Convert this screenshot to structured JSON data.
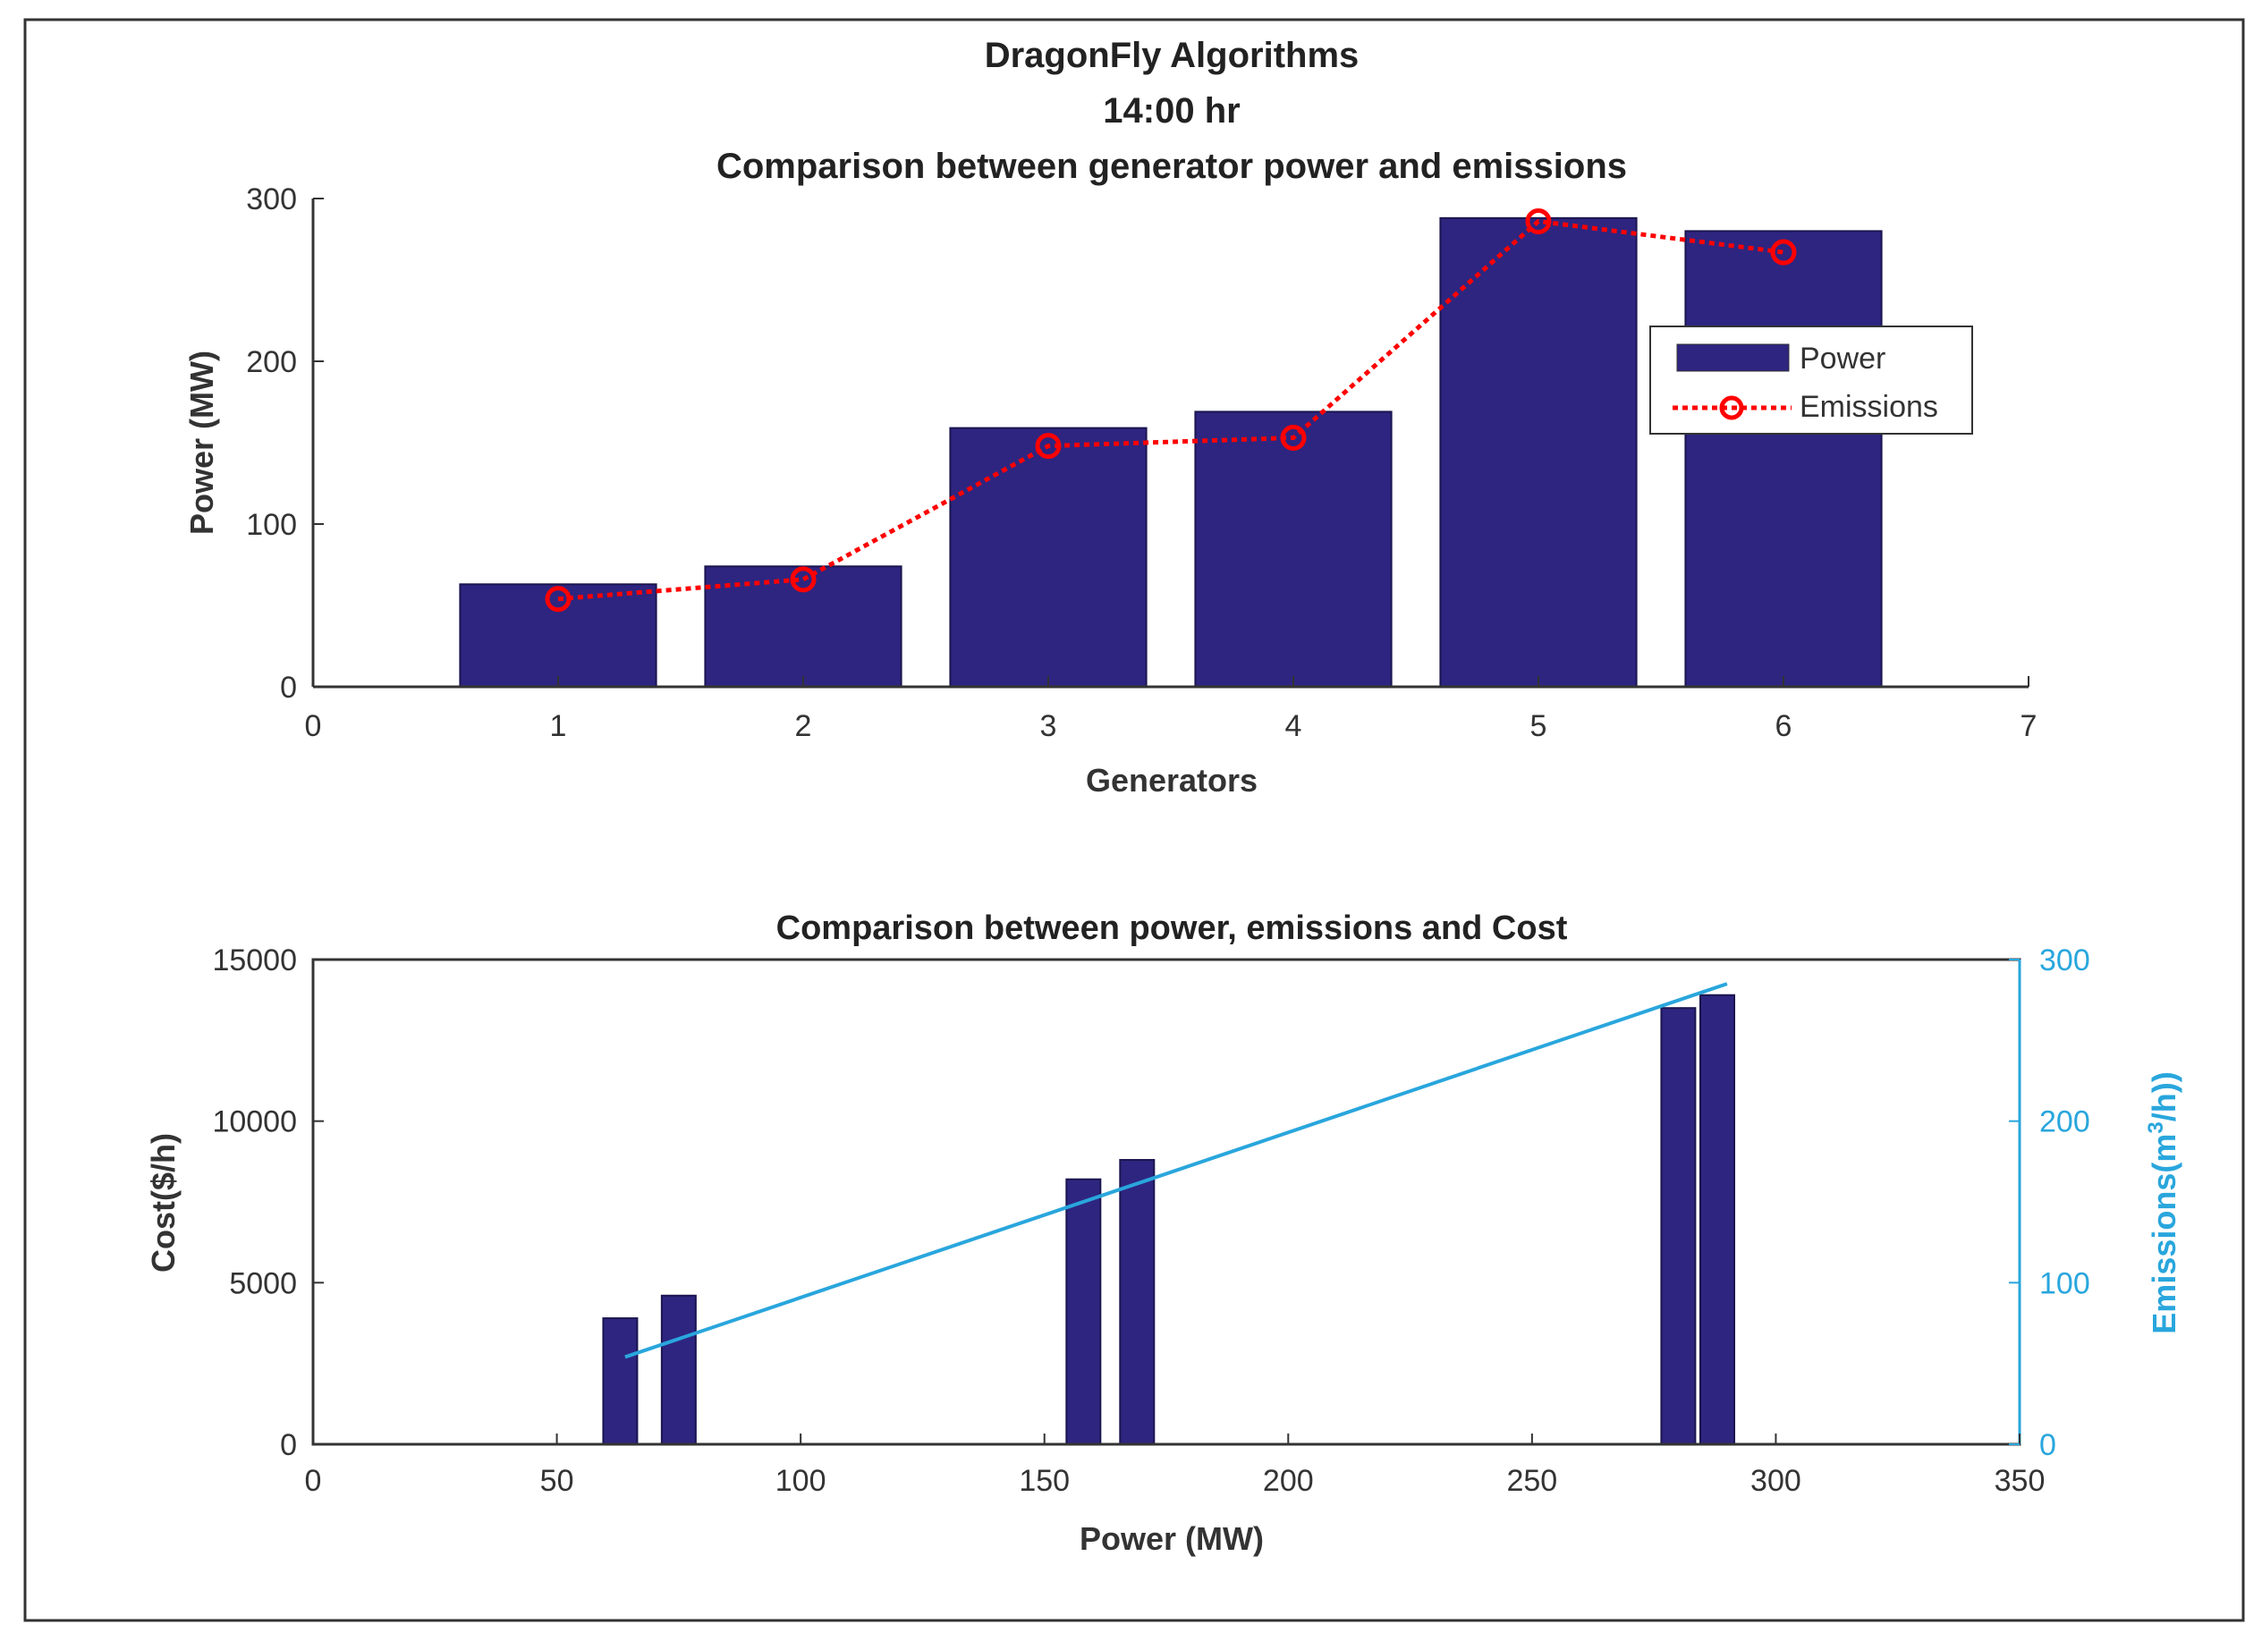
{
  "figure": {
    "title_lines": [
      "DragonFly Algorithms",
      "14:00 hr",
      "Comparison between generator power and emissions"
    ]
  },
  "colors": {
    "bar": "#2e2580",
    "emissions_line": "#ff0000",
    "emissions_axis": "#29a6dd",
    "axis": "#333333"
  },
  "chart_data": [
    {
      "type": "bar",
      "title": "Comparison between generator power and emissions",
      "xlabel": "Generators",
      "ylabel": "Power (MW)",
      "xlim": [
        0,
        7
      ],
      "ylim": [
        0,
        300
      ],
      "xticks": [
        0,
        1,
        2,
        3,
        4,
        5,
        6,
        7
      ],
      "yticks": [
        0,
        100,
        200,
        300
      ],
      "categories": [
        1,
        2,
        3,
        4,
        5,
        6
      ],
      "series": [
        {
          "name": "Power",
          "kind": "bar",
          "values": [
            63,
            74,
            159,
            169,
            288,
            280
          ]
        },
        {
          "name": "Emissions",
          "kind": "line",
          "style": "dotted-circle-markers",
          "values": [
            54,
            66,
            148,
            153,
            286,
            267
          ]
        }
      ],
      "legend": {
        "position": "top-right",
        "entries": [
          "Power",
          "Emissions"
        ]
      }
    },
    {
      "type": "bar",
      "title": "Comparison between power, emissions and Cost",
      "xlabel": "Power (MW)",
      "ylabel": "Cost($/h)",
      "y2label_prefix": "Emissions(m",
      "y2label_sup": "3",
      "y2label_suffix": "/h))",
      "xlim": [
        0,
        350
      ],
      "ylim": [
        0,
        15000
      ],
      "y2lim": [
        0,
        300
      ],
      "xticks": [
        0,
        50,
        100,
        150,
        200,
        250,
        300,
        350
      ],
      "yticks": [
        0,
        5000,
        10000,
        15000
      ],
      "y2ticks": [
        0,
        100,
        200,
        300
      ],
      "bars": {
        "x": [
          63,
          75,
          158,
          169,
          280,
          288
        ],
        "cost": [
          3900,
          4600,
          8200,
          8800,
          13500,
          13900
        ]
      },
      "emissions_line": {
        "x": [
          64,
          290
        ],
        "y": [
          54,
          285
        ]
      }
    }
  ]
}
